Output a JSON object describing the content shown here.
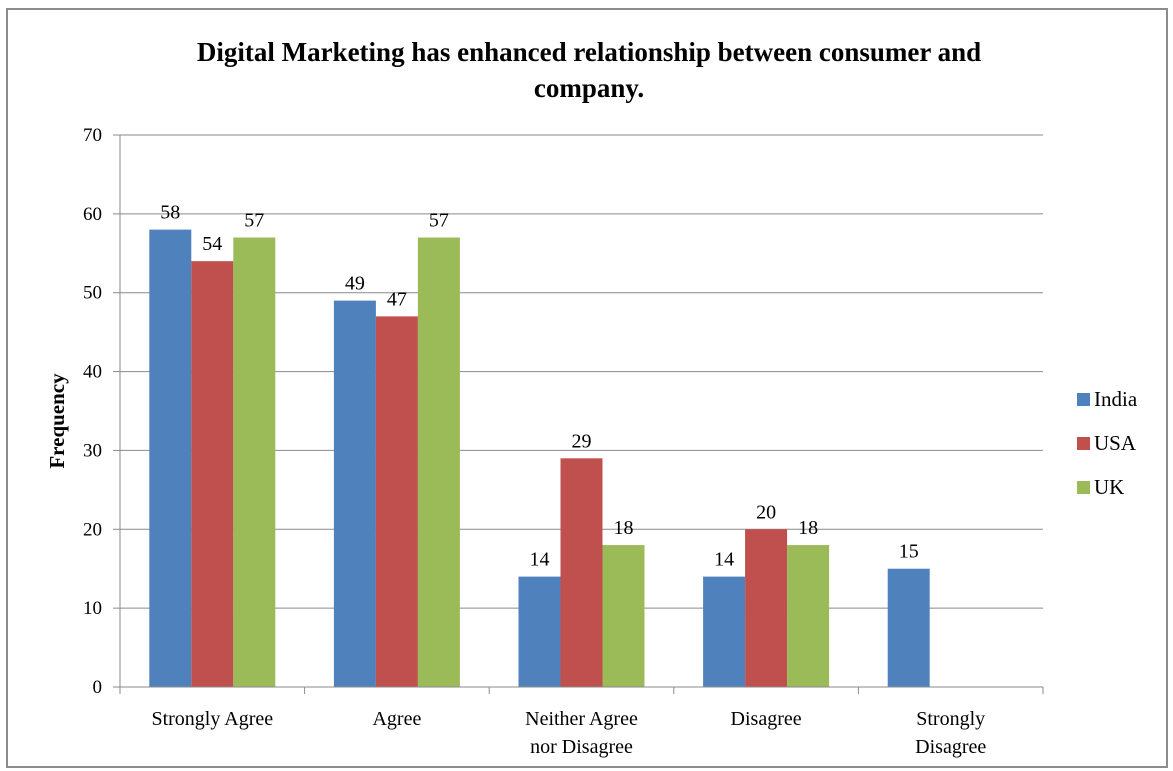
{
  "chart_data": {
    "type": "bar",
    "title": "Digital Marketing has enhanced relationship between consumer and company.",
    "title_lines": [
      "Digital Marketing has enhanced relationship between consumer and",
      "company."
    ],
    "xlabel": "",
    "ylabel": "Frequency",
    "ylim": [
      0,
      70
    ],
    "yticks": [
      0,
      10,
      20,
      30,
      40,
      50,
      60,
      70
    ],
    "categories": [
      "Strongly Agree",
      "Agree",
      "Neither Agree nor Disagree",
      "Disagree",
      "Strongly Disagree"
    ],
    "category_lines": [
      [
        "Strongly Agree"
      ],
      [
        "Agree"
      ],
      [
        "Neither Agree",
        "nor Disagree"
      ],
      [
        "Disagree"
      ],
      [
        "Strongly",
        "Disagree"
      ]
    ],
    "series": [
      {
        "name": "India",
        "color": "#4f81bd",
        "values": [
          58,
          49,
          14,
          14,
          15
        ]
      },
      {
        "name": "USA",
        "color": "#c0504d",
        "values": [
          54,
          47,
          29,
          20,
          null
        ]
      },
      {
        "name": "UK",
        "color": "#9bbb59",
        "values": [
          57,
          57,
          18,
          18,
          null
        ]
      }
    ],
    "grid": true,
    "legend": "right"
  }
}
